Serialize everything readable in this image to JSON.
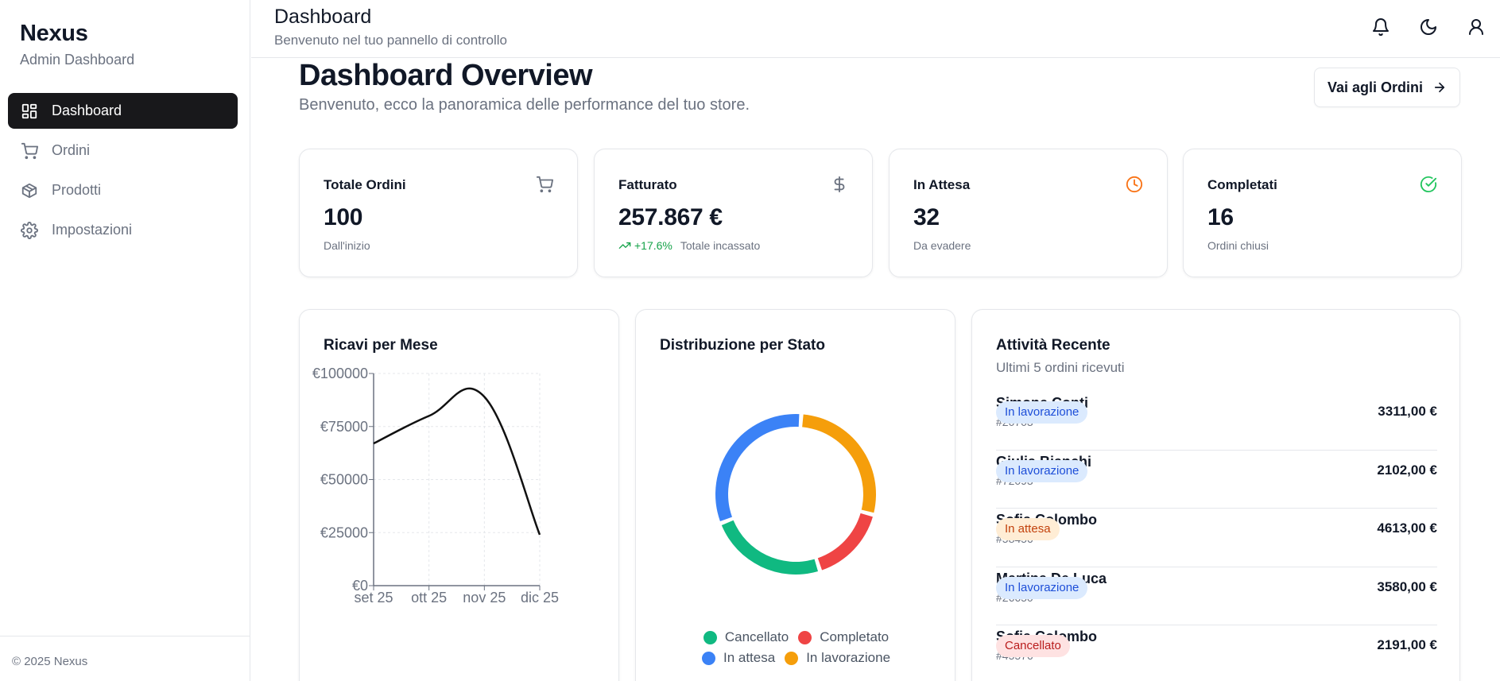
{
  "sidebar": {
    "brand": "Nexus",
    "brand_sub": "Admin Dashboard",
    "items": [
      {
        "label": "Dashboard",
        "icon": "grid-icon",
        "active": true
      },
      {
        "label": "Ordini",
        "icon": "cart-icon",
        "active": false
      },
      {
        "label": "Prodotti",
        "icon": "package-icon",
        "active": false
      },
      {
        "label": "Impostazioni",
        "icon": "gear-icon",
        "active": false
      }
    ],
    "footer": "© 2025 Nexus"
  },
  "header": {
    "title": "Dashboard",
    "subtitle": "Benvenuto nel tuo pannello di controllo",
    "icons": [
      "bell-icon",
      "moon-icon",
      "user-icon"
    ]
  },
  "main": {
    "title": "Dashboard Overview",
    "subtitle": "Benvenuto, ecco la panoramica delle performance del tuo store.",
    "orders_button": "Vai agli Ordini"
  },
  "stats": [
    {
      "label": "Totale Ordini",
      "value": "100",
      "note": "Dall'inizio",
      "icon": "cart-icon",
      "icon_color": "#6b7280"
    },
    {
      "label": "Fatturato",
      "value": "257.867 €",
      "trend": "+17.6%",
      "note": "Totale incassato",
      "icon": "dollar-icon",
      "icon_color": "#6b7280"
    },
    {
      "label": "In Attesa",
      "value": "32",
      "note": "Da evadere",
      "icon": "clock-icon",
      "icon_color": "#f97316"
    },
    {
      "label": "Completati",
      "value": "16",
      "note": "Ordini chiusi",
      "icon": "check-circle-icon",
      "icon_color": "#22c55e"
    }
  ],
  "revenue": {
    "title": "Ricavi per Mese"
  },
  "status": {
    "title": "Distribuzione per Stato"
  },
  "activity": {
    "title": "Attività Recente",
    "subtitle": "Ultimi 5 ordini ricevuti",
    "rows": [
      {
        "name": "Simone Conti",
        "id": "#20703",
        "status": "In lavorazione",
        "amount": "3311,00 €"
      },
      {
        "name": "Giulia Bianchi",
        "id": "#72093",
        "status": "In lavorazione",
        "amount": "2102,00 €"
      },
      {
        "name": "Sofia Colombo",
        "id": "#58456",
        "status": "In attesa",
        "amount": "4613,00 €"
      },
      {
        "name": "Martina De Luca",
        "id": "#26650",
        "status": "In lavorazione",
        "amount": "3580,00 €"
      },
      {
        "name": "Sofia Colombo",
        "id": "#45576",
        "status": "Cancellato",
        "amount": "2191,00 €"
      }
    ]
  },
  "badge_styles": {
    "In lavorazione": {
      "bg": "#dbeafe",
      "fg": "#1d4ed8"
    },
    "In attesa": {
      "bg": "#ffedd5",
      "fg": "#c2410c"
    },
    "Cancellato": {
      "bg": "#fee2e2",
      "fg": "#b91c1c"
    }
  },
  "chart_data": [
    {
      "type": "line",
      "x": [
        "set 25",
        "ott 25",
        "nov 25",
        "dic 25"
      ],
      "series": [
        {
          "values": [
            67000,
            80000,
            89000,
            24000
          ],
          "color": "#111111"
        }
      ],
      "yticks": [
        "€0",
        "€25000",
        "€50000",
        "€75000",
        "€100000"
      ],
      "ylim": [
        0,
        100000
      ],
      "grid": true
    },
    {
      "type": "pie",
      "donut": true,
      "categories": [
        "In lavorazione",
        "Completato",
        "Cancellato",
        "In attesa"
      ],
      "values": [
        28,
        16,
        24,
        32
      ],
      "colors": [
        "#f59e0b",
        "#ef4444",
        "#10b981",
        "#3b82f6"
      ],
      "legend": [
        {
          "label": "Cancellato",
          "color": "#10b981"
        },
        {
          "label": "Completato",
          "color": "#ef4444"
        },
        {
          "label": "In attesa",
          "color": "#3b82f6"
        },
        {
          "label": "In lavorazione",
          "color": "#f59e0b"
        }
      ],
      "legend_placement": "bottom"
    }
  ]
}
